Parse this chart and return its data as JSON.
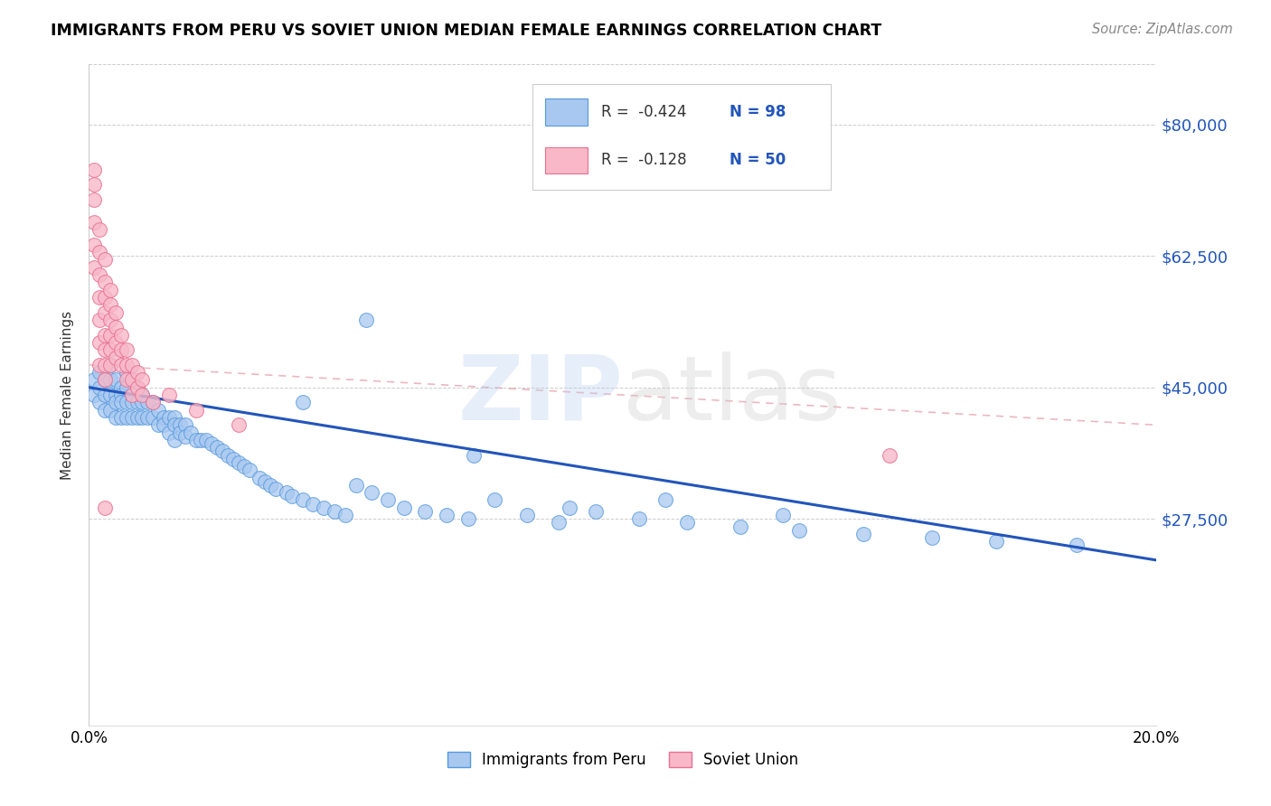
{
  "title": "IMMIGRANTS FROM PERU VS SOVIET UNION MEDIAN FEMALE EARNINGS CORRELATION CHART",
  "source": "Source: ZipAtlas.com",
  "ylabel": "Median Female Earnings",
  "yticks": [
    0,
    27500,
    45000,
    62500,
    80000
  ],
  "ytick_labels": [
    "",
    "$27,500",
    "$45,000",
    "$62,500",
    "$80,000"
  ],
  "xlim": [
    0.0,
    0.2
  ],
  "ylim": [
    0,
    88000
  ],
  "legend_r1": "-0.424",
  "legend_n1": "98",
  "legend_r2": "-0.128",
  "legend_n2": "50",
  "color_peru_fill": "#a8c8f0",
  "color_peru_edge": "#5599dd",
  "color_soviet_fill": "#f8b8c8",
  "color_soviet_edge": "#e87090",
  "color_line_peru": "#2255bb",
  "color_line_soviet": "#e08898",
  "peru_x": [
    0.001,
    0.001,
    0.002,
    0.002,
    0.002,
    0.003,
    0.003,
    0.003,
    0.004,
    0.004,
    0.004,
    0.004,
    0.005,
    0.005,
    0.005,
    0.005,
    0.006,
    0.006,
    0.006,
    0.006,
    0.007,
    0.007,
    0.007,
    0.007,
    0.008,
    0.008,
    0.008,
    0.009,
    0.009,
    0.009,
    0.01,
    0.01,
    0.01,
    0.011,
    0.011,
    0.012,
    0.012,
    0.013,
    0.013,
    0.014,
    0.014,
    0.015,
    0.015,
    0.016,
    0.016,
    0.016,
    0.017,
    0.017,
    0.018,
    0.018,
    0.019,
    0.02,
    0.021,
    0.022,
    0.023,
    0.024,
    0.025,
    0.026,
    0.027,
    0.028,
    0.029,
    0.03,
    0.032,
    0.033,
    0.034,
    0.035,
    0.037,
    0.038,
    0.04,
    0.042,
    0.044,
    0.046,
    0.048,
    0.05,
    0.053,
    0.056,
    0.059,
    0.063,
    0.067,
    0.071,
    0.076,
    0.082,
    0.088,
    0.095,
    0.103,
    0.112,
    0.122,
    0.133,
    0.145,
    0.158,
    0.072,
    0.09,
    0.052,
    0.04,
    0.108,
    0.13,
    0.17,
    0.185
  ],
  "peru_y": [
    46000,
    44000,
    47000,
    45000,
    43000,
    46000,
    44000,
    42000,
    48000,
    46000,
    44000,
    42000,
    46000,
    44000,
    43000,
    41000,
    45000,
    44000,
    43000,
    41000,
    47000,
    45000,
    43000,
    41000,
    44000,
    43000,
    41000,
    45000,
    43000,
    41000,
    44000,
    43000,
    41000,
    43000,
    41000,
    43000,
    41000,
    42000,
    40000,
    41000,
    40000,
    41000,
    39000,
    41000,
    40000,
    38000,
    40000,
    39000,
    40000,
    38500,
    39000,
    38000,
    38000,
    38000,
    37500,
    37000,
    36500,
    36000,
    35500,
    35000,
    34500,
    34000,
    33000,
    32500,
    32000,
    31500,
    31000,
    30500,
    30000,
    29500,
    29000,
    28500,
    28000,
    32000,
    31000,
    30000,
    29000,
    28500,
    28000,
    27500,
    30000,
    28000,
    27000,
    28500,
    27500,
    27000,
    26500,
    26000,
    25500,
    25000,
    36000,
    29000,
    54000,
    43000,
    30000,
    28000,
    24500,
    24000
  ],
  "soviet_x": [
    0.001,
    0.001,
    0.001,
    0.001,
    0.001,
    0.001,
    0.002,
    0.002,
    0.002,
    0.002,
    0.002,
    0.002,
    0.002,
    0.003,
    0.003,
    0.003,
    0.003,
    0.003,
    0.003,
    0.003,
    0.003,
    0.004,
    0.004,
    0.004,
    0.004,
    0.004,
    0.004,
    0.005,
    0.005,
    0.005,
    0.005,
    0.006,
    0.006,
    0.006,
    0.007,
    0.007,
    0.007,
    0.008,
    0.008,
    0.008,
    0.009,
    0.009,
    0.01,
    0.01,
    0.012,
    0.015,
    0.02,
    0.028,
    0.003,
    0.15
  ],
  "soviet_y": [
    74000,
    72000,
    70000,
    67000,
    64000,
    61000,
    66000,
    63000,
    60000,
    57000,
    54000,
    51000,
    48000,
    62000,
    59000,
    57000,
    55000,
    52000,
    50000,
    48000,
    46000,
    58000,
    56000,
    54000,
    52000,
    50000,
    48000,
    55000,
    53000,
    51000,
    49000,
    52000,
    50000,
    48000,
    50000,
    48000,
    46000,
    48000,
    46000,
    44000,
    47000,
    45000,
    46000,
    44000,
    43000,
    44000,
    42000,
    40000,
    29000,
    36000
  ],
  "peru_line_x0": 0.0,
  "peru_line_x1": 0.2,
  "peru_line_y0": 45000,
  "peru_line_y1": 22000,
  "soviet_line_x0": 0.0,
  "soviet_line_x1": 0.2,
  "soviet_line_y0": 48000,
  "soviet_line_y1": 40000
}
